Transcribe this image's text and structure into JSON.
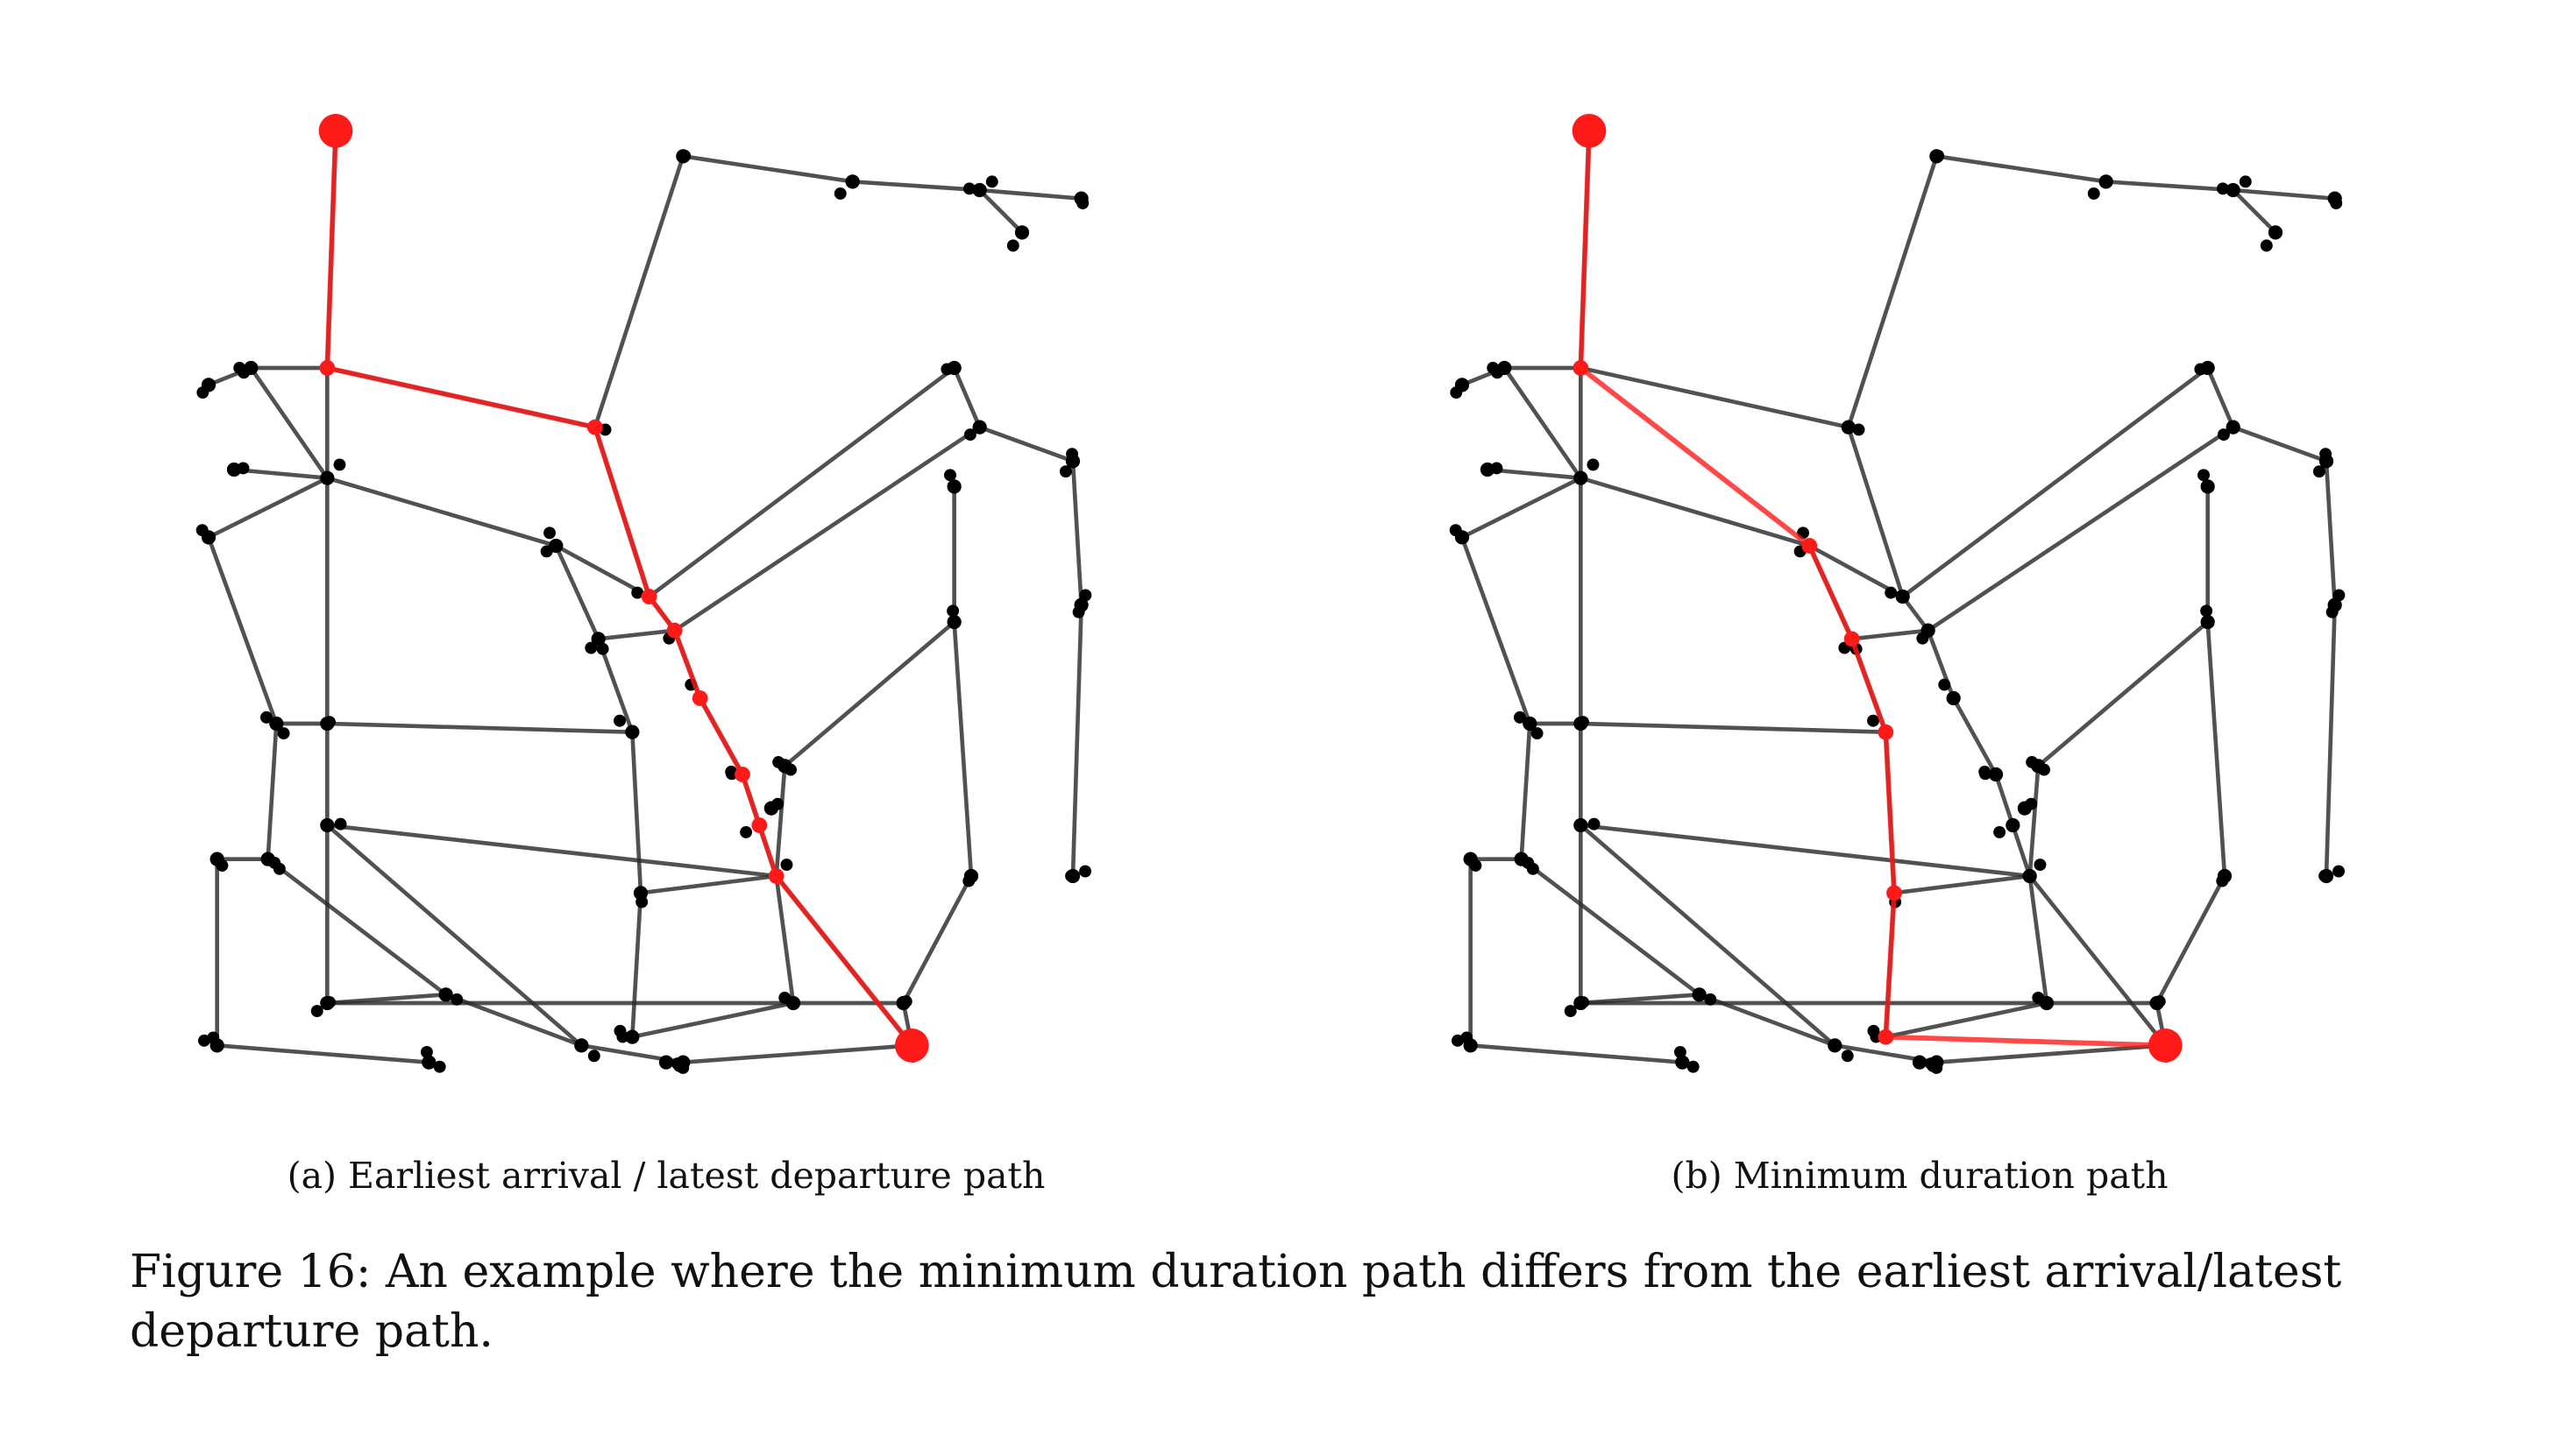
{
  "figure": {
    "caption_number": "Figure 16:",
    "caption_text": "An example where the minimum duration path differs from the earliest arrival/latest departure path."
  },
  "panels": [
    {
      "id": "a",
      "caption": "(a) Earliest arrival / latest departure path"
    },
    {
      "id": "b",
      "caption": "(b) Minimum duration path"
    }
  ],
  "colors": {
    "edge": "#2b2b2b",
    "node": "#000000",
    "path": "#ff1a1a",
    "background": "#ffffff"
  }
}
